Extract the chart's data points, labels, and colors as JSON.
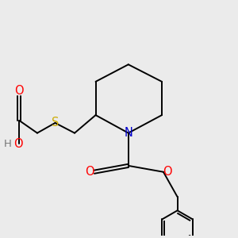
{
  "background_color": "#ebebeb",
  "bond_color": "#000000",
  "atom_colors": {
    "O": "#ff0000",
    "N": "#0000cc",
    "S": "#ccaa00",
    "H": "#777777",
    "C": "#000000"
  },
  "figsize": [
    3.0,
    3.0
  ],
  "dpi": 100,
  "lw": 1.4,
  "fontsize": 9.5
}
